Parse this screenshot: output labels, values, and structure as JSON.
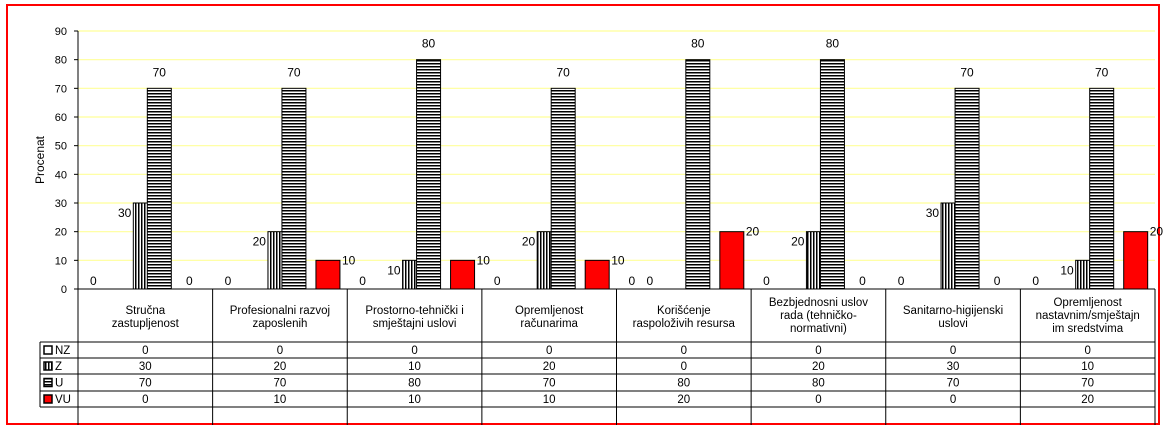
{
  "chart_data": {
    "type": "bar",
    "ylabel": "Procenat",
    "ylim": [
      0,
      90
    ],
    "yticks": [
      0,
      10,
      20,
      30,
      40,
      50,
      60,
      70,
      80,
      90
    ],
    "categories": [
      [
        "Stručna",
        "zastupljenost"
      ],
      [
        "Profesionalni razvoj",
        "zaposlenih"
      ],
      [
        "Prostorno-tehnički i",
        "smještajni uslovi"
      ],
      [
        "Opremljenost",
        "računarima"
      ],
      [
        "Korišćenje",
        "raspoloživih resursa"
      ],
      [
        "Bezbjednosni uslov",
        "rada (tehničko-",
        "normativni)"
      ],
      [
        "Sanitarno-higijenski",
        "uslovi"
      ],
      [
        "Opremljenost",
        "nastavnim/smještajn",
        "im sredstvima"
      ]
    ],
    "series": [
      {
        "name": "NZ",
        "values": [
          0,
          0,
          0,
          0,
          0,
          0,
          0,
          0
        ],
        "color": "#ffffff",
        "pattern": "none"
      },
      {
        "name": "Z",
        "values": [
          30,
          20,
          10,
          20,
          0,
          20,
          30,
          10
        ],
        "color": "#000000",
        "pattern": "vertical"
      },
      {
        "name": "U",
        "values": [
          70,
          70,
          80,
          70,
          80,
          80,
          70,
          70
        ],
        "color": "#000000",
        "pattern": "horizontal"
      },
      {
        "name": "VU",
        "values": [
          0,
          10,
          10,
          10,
          20,
          0,
          0,
          20
        ],
        "color": "#ff0000",
        "pattern": "solid"
      }
    ],
    "grid": true,
    "grid_color": "#ffff99",
    "data_table": true
  }
}
